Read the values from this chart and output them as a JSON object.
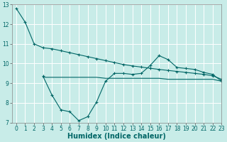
{
  "xlabel": "Humidex (Indice chaleur)",
  "background_color": "#c8ece8",
  "grid_color": "#ffffff",
  "line_color": "#006666",
  "x_values": [
    0,
    1,
    2,
    3,
    4,
    5,
    6,
    7,
    8,
    9,
    10,
    11,
    12,
    13,
    14,
    15,
    16,
    17,
    18,
    19,
    20,
    21,
    22,
    23
  ],
  "line1_y": [
    12.8,
    12.1,
    11.0,
    10.8,
    10.75,
    10.65,
    10.55,
    10.45,
    10.35,
    10.25,
    10.15,
    10.05,
    9.95,
    9.88,
    9.82,
    9.76,
    9.7,
    9.65,
    9.6,
    9.55,
    9.5,
    9.45,
    9.38,
    9.2
  ],
  "line2_y": [
    null,
    null,
    null,
    9.35,
    8.4,
    7.65,
    7.55,
    7.1,
    7.3,
    8.05,
    9.1,
    9.5,
    9.5,
    9.45,
    9.5,
    9.9,
    10.4,
    10.2,
    9.8,
    9.75,
    9.7,
    9.55,
    9.45,
    9.1
  ],
  "line3_y": [
    null,
    null,
    null,
    9.3,
    9.3,
    9.3,
    9.3,
    9.3,
    9.3,
    9.3,
    9.25,
    9.25,
    9.25,
    9.25,
    9.25,
    9.25,
    9.25,
    9.2,
    9.2,
    9.2,
    9.2,
    9.2,
    9.2,
    9.1
  ],
  "ylim": [
    7,
    13
  ],
  "xlim": [
    -0.5,
    23
  ],
  "yticks": [
    7,
    8,
    9,
    10,
    11,
    12,
    13
  ],
  "xticks": [
    0,
    1,
    2,
    3,
    4,
    5,
    6,
    7,
    8,
    9,
    10,
    11,
    12,
    13,
    14,
    15,
    16,
    17,
    18,
    19,
    20,
    21,
    22,
    23
  ],
  "xlabel_fontsize": 7,
  "tick_fontsize": 5.5
}
